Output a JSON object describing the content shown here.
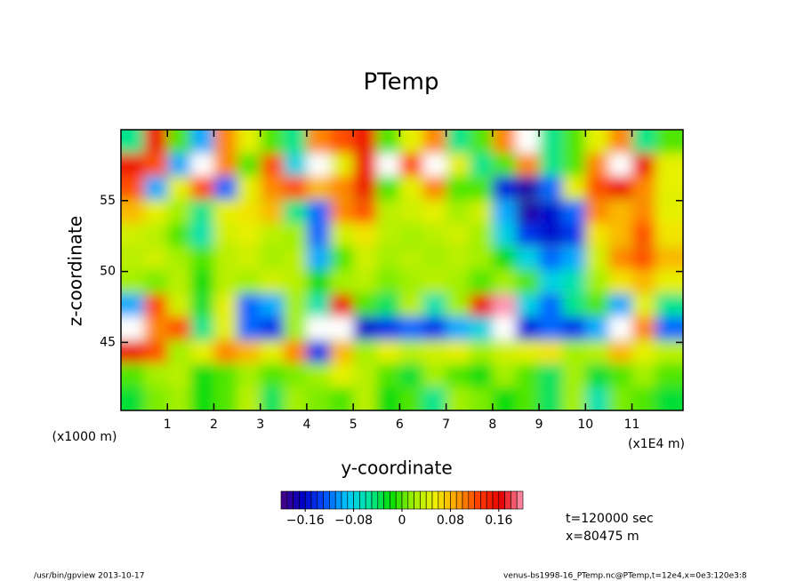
{
  "chart_data": {
    "type": "heatmap",
    "title": "PTemp",
    "xlabel": "y-coordinate",
    "ylabel": "z-coordinate",
    "x_unit": "(x1E4 m)",
    "y_unit": "(x1000 m)",
    "xlim": [
      0,
      12.1
    ],
    "ylim": [
      40.2,
      60
    ],
    "xticks": [
      1,
      2,
      3,
      4,
      5,
      6,
      7,
      8,
      9,
      10,
      11
    ],
    "yticks": [
      45,
      50,
      55
    ],
    "x": [
      0.25,
      0.75,
      1.25,
      1.75,
      2.25,
      2.75,
      3.25,
      3.75,
      4.25,
      4.75,
      5.25,
      5.75,
      6.25,
      6.75,
      7.25,
      7.75,
      8.25,
      8.75,
      9.25,
      9.75,
      10.25,
      10.75,
      11.25,
      11.75
    ],
    "y": [
      59.2,
      57.5,
      55.9,
      54.2,
      52.6,
      50.9,
      49.3,
      47.6,
      46.0,
      44.3,
      42.7,
      41.0
    ],
    "z": [
      [
        -0.05,
        0.15,
        0.0,
        -0.1,
        0.1,
        0.05,
        0.0,
        -0.05,
        0.1,
        0.12,
        0.15,
        0.0,
        0.05,
        0.1,
        -0.05,
        0.0,
        0.1,
        0.25,
        -0.05,
        0.0,
        0.05,
        0.1,
        -0.05,
        0.0
      ],
      [
        0.15,
        0.12,
        -0.1,
        0.25,
        0.1,
        0.0,
        0.12,
        -0.08,
        0.25,
        0.05,
        0.15,
        0.25,
        0.12,
        0.25,
        0.05,
        -0.05,
        0.0,
        0.1,
        -0.05,
        0.0,
        0.1,
        0.25,
        0.15,
        0.05
      ],
      [
        0.12,
        -0.1,
        0.05,
        0.12,
        -0.12,
        0.05,
        0.1,
        0.12,
        0.08,
        0.1,
        0.15,
        0.0,
        0.05,
        0.1,
        0.0,
        0.0,
        -0.15,
        -0.18,
        -0.12,
        0.05,
        0.12,
        0.15,
        0.1,
        0.05
      ],
      [
        0.08,
        0.05,
        0.02,
        -0.05,
        0.05,
        0.06,
        0.08,
        -0.05,
        -0.12,
        0.1,
        0.12,
        0.03,
        0.04,
        0.05,
        0.02,
        0.04,
        -0.1,
        -0.18,
        -0.16,
        -0.12,
        0.1,
        0.08,
        0.1,
        0.05
      ],
      [
        0.04,
        0.03,
        0.0,
        -0.06,
        0.04,
        0.05,
        0.03,
        0.02,
        -0.12,
        0.04,
        0.06,
        0.03,
        0.02,
        0.03,
        0.04,
        0.02,
        -0.08,
        -0.14,
        -0.16,
        -0.14,
        0.06,
        0.08,
        0.12,
        0.06
      ],
      [
        0.03,
        0.04,
        0.02,
        0.0,
        0.03,
        0.04,
        0.02,
        0.03,
        -0.1,
        0.0,
        0.04,
        0.02,
        0.03,
        0.02,
        0.03,
        0.02,
        -0.02,
        -0.08,
        -0.12,
        -0.1,
        0.04,
        0.1,
        0.12,
        0.08
      ],
      [
        0.02,
        0.01,
        0.03,
        -0.02,
        0.03,
        0.02,
        0.04,
        0.03,
        -0.02,
        0.02,
        0.03,
        0.01,
        0.02,
        0.03,
        0.02,
        0.0,
        0.02,
        0.0,
        -0.08,
        -0.06,
        0.02,
        0.06,
        0.08,
        0.05
      ],
      [
        -0.1,
        0.12,
        0.04,
        -0.03,
        0.05,
        -0.12,
        -0.1,
        0.02,
        -0.06,
        0.15,
        0.0,
        -0.04,
        0.03,
        -0.06,
        0.02,
        0.15,
        0.2,
        -0.08,
        -0.12,
        -0.05,
        0.0,
        -0.1,
        0.05,
        -0.05
      ],
      [
        0.25,
        0.1,
        0.12,
        -0.05,
        0.05,
        -0.12,
        -0.14,
        0.02,
        0.25,
        0.25,
        -0.16,
        -0.14,
        -0.12,
        -0.14,
        -0.1,
        -0.08,
        0.25,
        -0.15,
        -0.12,
        -0.14,
        -0.1,
        0.25,
        0.1,
        -0.12
      ],
      [
        0.15,
        0.12,
        0.02,
        0.05,
        0.1,
        0.08,
        0.05,
        0.1,
        -0.14,
        0.08,
        0.02,
        0.05,
        0.03,
        0.04,
        0.05,
        0.02,
        0.04,
        0.05,
        0.06,
        0.02,
        0.03,
        0.08,
        0.05,
        0.03
      ],
      [
        0.0,
        0.02,
        0.03,
        -0.02,
        0.0,
        0.02,
        0.0,
        0.01,
        0.02,
        0.05,
        0.03,
        0.0,
        -0.03,
        0.02,
        0.0,
        -0.02,
        0.02,
        0.0,
        -0.04,
        0.02,
        -0.03,
        0.0,
        0.02,
        0.0
      ],
      [
        -0.03,
        0.01,
        0.02,
        -0.02,
        0.0,
        0.03,
        -0.04,
        0.02,
        0.01,
        0.0,
        0.03,
        -0.02,
        0.0,
        -0.05,
        0.02,
        0.01,
        -0.02,
        0.0,
        -0.04,
        0.02,
        -0.06,
        0.01,
        0.0,
        -0.03
      ]
    ],
    "clim": [
      -0.2,
      0.2
    ],
    "cticks": [
      {
        "value": -0.16,
        "label": "−0.16"
      },
      {
        "value": -0.08,
        "label": "−0.08"
      },
      0,
      0.08,
      0.16
    ],
    "colormap": [
      "#4b0082",
      "#0000c8",
      "#0050ff",
      "#00c8ff",
      "#00e6a0",
      "#00dc00",
      "#a0f000",
      "#f0f000",
      "#ffa000",
      "#ff3c00",
      "#e60000",
      "#ff96b4"
    ],
    "over_color": "#ffffff",
    "annotations": [
      "t=120000 sec",
      "x=80475 m"
    ],
    "footer_left": "/usr/bin/gpview  2013-10-17",
    "footer_right": "venus-bs1998-16_PTemp.nc@PTemp,t=12e4,x=0e3:120e3:8"
  }
}
